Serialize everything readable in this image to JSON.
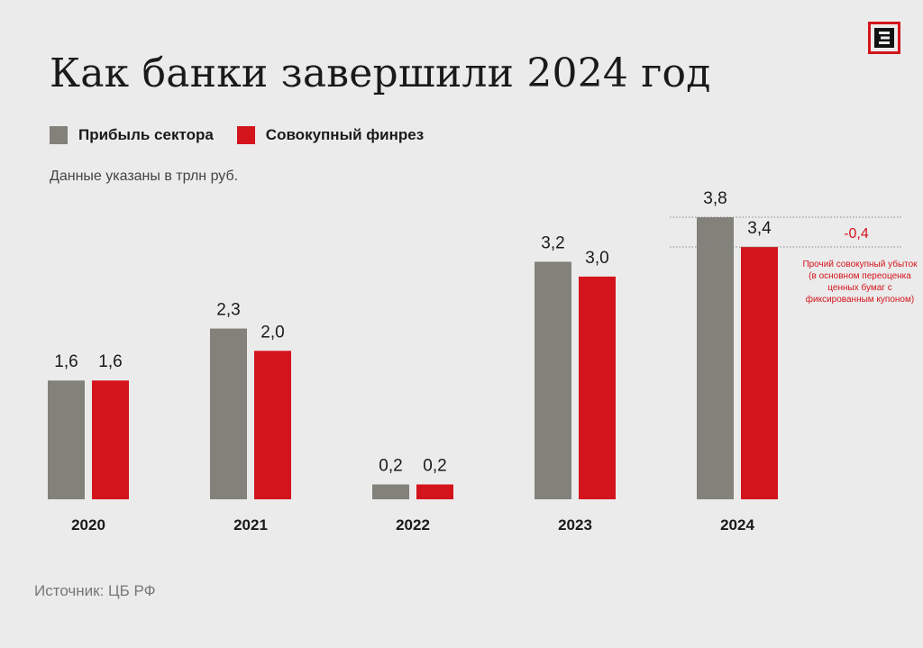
{
  "title": "Как банки завершили 2024 год",
  "subtitle": "Данные указаны в трлн руб.",
  "source": "Источник: ЦБ РФ",
  "logo_icon": "publisher-logo-icon",
  "colors": {
    "profit": "#82817a",
    "total": "#d4141c",
    "background": "#ebebeb"
  },
  "legend": [
    {
      "label": "Прибыль сектора",
      "color": "#82817a"
    },
    {
      "label": "Совокупный финрез",
      "color": "#d4141c"
    }
  ],
  "chart_data": {
    "type": "bar",
    "categories": [
      "2020",
      "2021",
      "2022",
      "2023",
      "2024"
    ],
    "series": [
      {
        "name": "Прибыль сектора",
        "values": [
          1.6,
          2.3,
          0.2,
          3.2,
          3.8
        ],
        "labels": [
          "1,6",
          "2,3",
          "0,2",
          "3,2",
          "3,8"
        ]
      },
      {
        "name": "Совокупный финрез",
        "values": [
          1.6,
          2.0,
          0.2,
          3.0,
          3.4
        ],
        "labels": [
          "1,6",
          "2,0",
          "0,2",
          "3,0",
          "3,4"
        ]
      }
    ],
    "ylim": [
      0,
      3.8
    ],
    "grid": false,
    "legend_position": "top-left",
    "annotation": {
      "category": "2024",
      "value_label": "-0,4",
      "text": "Прочий совокупный убыток (в основном переоценка ценных бумаг с фиксированным купоном)"
    }
  }
}
